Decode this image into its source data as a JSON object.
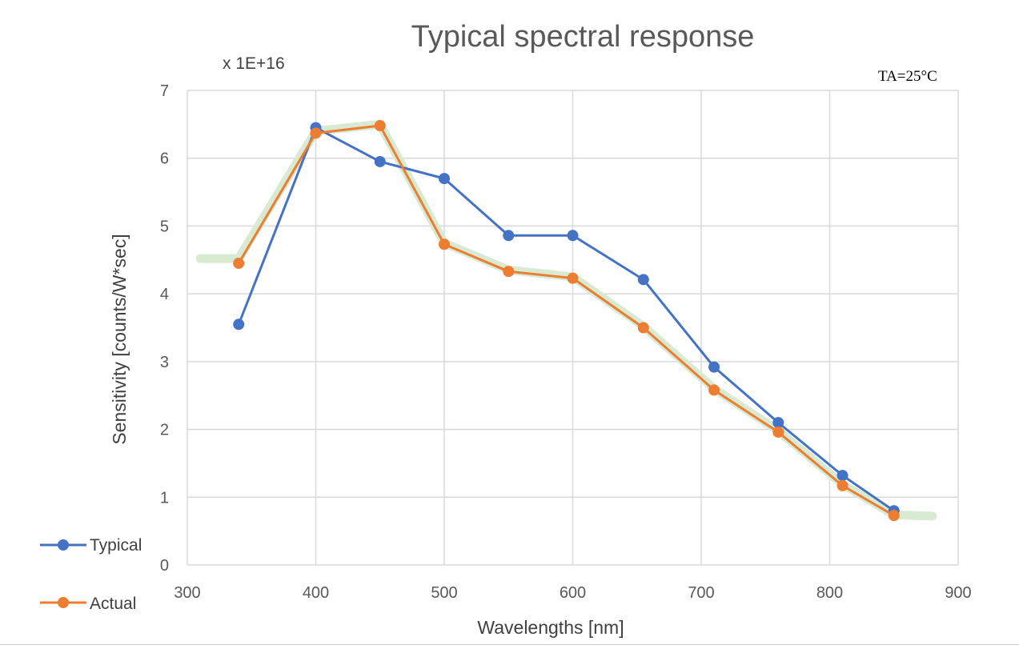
{
  "chart_data": {
    "type": "line",
    "title": "Typical spectral response",
    "multiplier_label": "x 1E+16",
    "annotation": "TA=25°C",
    "xlabel": "Wavelengths [nm]",
    "ylabel": "Sensitivity [counts/W*sec]",
    "xlim": [
      300,
      900
    ],
    "ylim": [
      0,
      7
    ],
    "xticks": [
      300,
      400,
      500,
      600,
      700,
      800,
      900
    ],
    "yticks": [
      0,
      1,
      2,
      3,
      4,
      5,
      6,
      7
    ],
    "grid": true,
    "legend_position": "bottom-left",
    "series": [
      {
        "name": "Typical",
        "color": "#4472C4",
        "x": [
          340,
          400,
          450,
          500,
          550,
          600,
          655,
          710,
          760,
          810,
          850
        ],
        "y": [
          3.55,
          6.45,
          5.95,
          5.7,
          4.86,
          4.86,
          4.21,
          2.92,
          2.1,
          1.32,
          0.8
        ]
      },
      {
        "name": "Actual",
        "color": "#ED7D31",
        "x": [
          340,
          400,
          450,
          500,
          550,
          600,
          655,
          710,
          760,
          810,
          850
        ],
        "y": [
          4.45,
          6.37,
          6.48,
          4.73,
          4.33,
          4.23,
          3.5,
          2.58,
          1.96,
          1.17,
          0.73
        ]
      }
    ],
    "highlight": {
      "color": "#D9EAD3",
      "x": [
        310,
        340,
        400,
        450,
        500,
        550,
        600,
        655,
        710,
        760,
        810,
        850,
        880
      ],
      "y": [
        4.52,
        4.52,
        6.4,
        6.5,
        4.75,
        4.35,
        4.25,
        3.52,
        2.6,
        1.98,
        1.19,
        0.74,
        0.72
      ]
    }
  }
}
